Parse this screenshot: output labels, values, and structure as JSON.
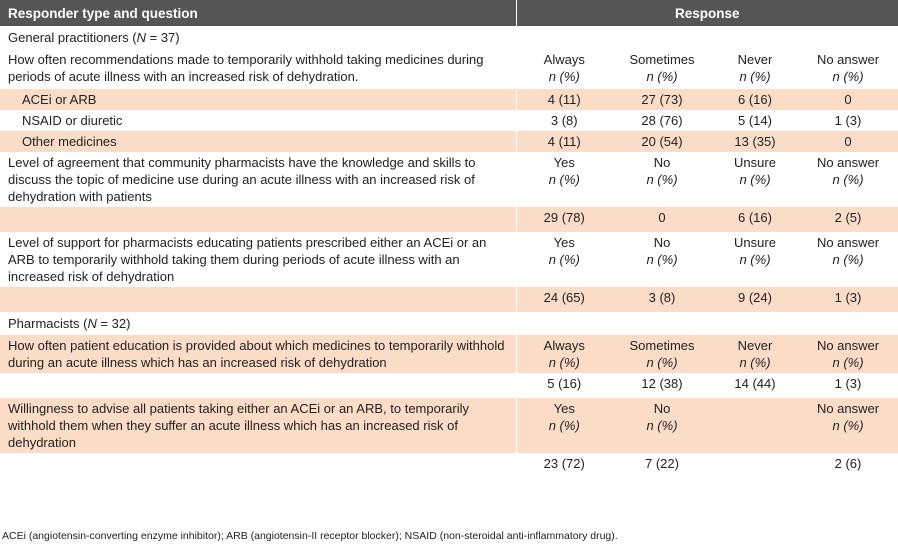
{
  "header": {
    "col1": "Responder type and question",
    "col2": "Response"
  },
  "gp_section": {
    "label": "General practitioners (",
    "n_italic": "N",
    "n_rest": " = 37)"
  },
  "q1": {
    "text": "How often recommendations made to temporarily withhold taking medicines during periods of acute illness with an increased risk of dehydration.",
    "responses": [
      "Always",
      "Sometimes",
      "Never",
      "No answer"
    ],
    "sub": "n (%)",
    "rows": [
      {
        "label": "ACEi or ARB",
        "values": [
          "4 (11)",
          "27 (73)",
          "6 (16)",
          "0"
        ]
      },
      {
        "label": "NSAID or diuretic",
        "values": [
          "3 (8)",
          "28 (76)",
          "5 (14)",
          "1 (3)"
        ]
      },
      {
        "label": "Other medicines",
        "values": [
          "4 (11)",
          "20 (54)",
          "13 (35)",
          "0"
        ]
      }
    ]
  },
  "q2": {
    "text": "Level of agreement that community pharmacists have the knowledge and skills to discuss the topic of medicine use during an acute illness with an increased risk of dehydration with patients",
    "responses": [
      "Yes",
      "No",
      "Unsure",
      "No answer"
    ],
    "sub": "n (%)",
    "values": [
      "29 (78)",
      "0",
      "6 (16)",
      "2 (5)"
    ]
  },
  "q3": {
    "text": "Level of support for pharmacists educating patients prescribed either an ACEi or an ARB to temporarily withhold taking them during periods of acute illness with an increased risk of dehydration",
    "responses": [
      "Yes",
      "No",
      "Unsure",
      "No answer"
    ],
    "sub": "n (%)",
    "values": [
      "24 (65)",
      "3 (8)",
      "9 (24)",
      "1 (3)"
    ]
  },
  "ph_section": {
    "label": "Pharmacists (",
    "n_italic": "N",
    "n_rest": " = 32)"
  },
  "q4": {
    "text": "How often patient education is provided about which medicines to temporarily withhold during an acute illness which has an increased risk of dehydration",
    "responses": [
      "Always",
      "Sometimes",
      "Never",
      "No answer"
    ],
    "sub": "n (%)",
    "values": [
      "5 (16)",
      "12 (38)",
      "14 (44)",
      "1 (3)"
    ]
  },
  "q5": {
    "text": "Willingness to advise all patients taking either an ACEi or an ARB, to temporarily withhold them when they suffer an acute illness which has an increased risk of dehydration",
    "responses": [
      "Yes",
      "No",
      "",
      "No answer"
    ],
    "sub": "n (%)",
    "values": [
      "23 (72)",
      "7 (22)",
      "",
      "2 (6)"
    ]
  },
  "footnote": "ACEi (angiotensin-converting enzyme inhibitor); ARB (angiotensin-II receptor blocker); NSAID (non-steroidal anti-inflammatory drug)."
}
